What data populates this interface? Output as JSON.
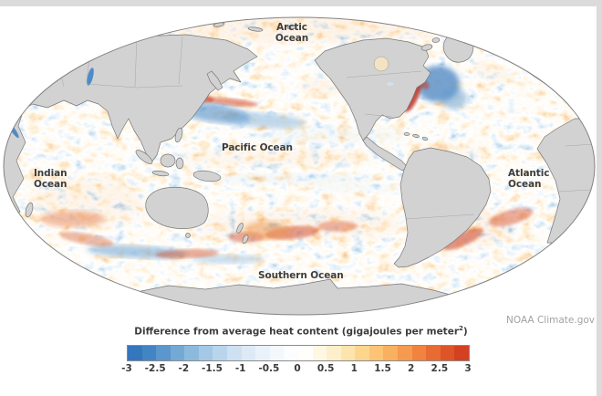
{
  "page": {
    "background": "#ffffff",
    "edge_bar_color": "#dbdbdb"
  },
  "map": {
    "ocean_labels": [
      {
        "id": "arctic-ocean",
        "lines": [
          "Arctic",
          "Ocean"
        ]
      },
      {
        "id": "pacific-ocean",
        "lines": [
          "Pacific Ocean"
        ]
      },
      {
        "id": "indian-ocean",
        "lines": [
          "Indian",
          "Ocean"
        ]
      },
      {
        "id": "atlantic-ocean",
        "lines": [
          "Atlantic",
          "Ocean"
        ]
      },
      {
        "id": "southern-ocean",
        "lines": [
          "Southern Ocean"
        ]
      }
    ],
    "credit": "NOAA Climate.gov",
    "colors": {
      "land": "#d2d2d2",
      "coastline": "#777777",
      "country_border": "#a6a6a6",
      "map_outline": "#828282",
      "label_text": "#3d3d3d",
      "credit_text": "#a2a2a2"
    }
  },
  "legend": {
    "title_prefix": "Difference from average heat content (gigajoules per meter",
    "title_sup": "2",
    "title_suffix": ")",
    "ticks": [
      "-3",
      "-2.5",
      "-2",
      "-1.5",
      "-1",
      "-0.5",
      "0",
      "0.5",
      "1",
      "1.5",
      "2",
      "2.5",
      "3"
    ],
    "bar_colors": [
      "#3576bc",
      "#4384c4",
      "#5b97cc",
      "#74a9d5",
      "#8cbadd",
      "#a4c8e5",
      "#b9d5ec",
      "#cde1f2",
      "#ddeaf6",
      "#e9f2fa",
      "#f2f8fc",
      "#fbfdfe",
      "#fffefb",
      "#fdf7e3",
      "#fdefca",
      "#fde4ac",
      "#fdd68e",
      "#fcc474",
      "#f9b060",
      "#f59a4e",
      "#f08340",
      "#e86b33",
      "#de5429",
      "#d44122"
    ]
  },
  "chart_data": {
    "type": "heatmap",
    "title": "Difference from average heat content (gigajoules per meter²)",
    "variable": "ocean heat content anomaly",
    "units": "gigajoules per meter²",
    "projection": "oval (Mollweide-style), Pacific-centered world map",
    "colorbar": {
      "orientation": "horizontal",
      "min": -3,
      "max": 3,
      "tick_step": 0.5,
      "ticks": [
        -3,
        -2.5,
        -2,
        -1.5,
        -1,
        -0.5,
        0,
        0.5,
        1,
        1.5,
        2,
        2.5,
        3
      ],
      "palette": [
        "#3576bc",
        "#4384c4",
        "#5b97cc",
        "#74a9d5",
        "#8cbadd",
        "#a4c8e5",
        "#b9d5ec",
        "#cde1f2",
        "#ddeaf6",
        "#e9f2fa",
        "#f2f8fc",
        "#fbfdfe",
        "#fffefb",
        "#fdf7e3",
        "#fdefca",
        "#fde4ac",
        "#fdd68e",
        "#fcc474",
        "#f9b060",
        "#f59a4e",
        "#f08340",
        "#e86b33",
        "#de5429",
        "#d44122"
      ],
      "negative_color_meaning": "below average heat content",
      "positive_color_meaning": "above average heat content"
    },
    "labeled_regions": [
      "Arctic Ocean",
      "Pacific Ocean",
      "Indian Ocean",
      "Atlantic Ocean",
      "Southern Ocean"
    ],
    "credit": "NOAA Climate.gov",
    "notable_features": [
      "most ocean basins show scattered warm (orange) anomalies",
      "strong cool (blue) patch in the subpolar North Atlantic",
      "intense warm streak along the Gulf Stream off the US East Coast",
      "mixed strong warm/cool streaks east of Japan (Kuroshio extension)",
      "cool streaks along the equatorial / northeastern Pacific",
      "warm band with red patches across the South Pacific and South Atlantic",
      "warm rim of open water in the Arctic Ocean"
    ]
  }
}
